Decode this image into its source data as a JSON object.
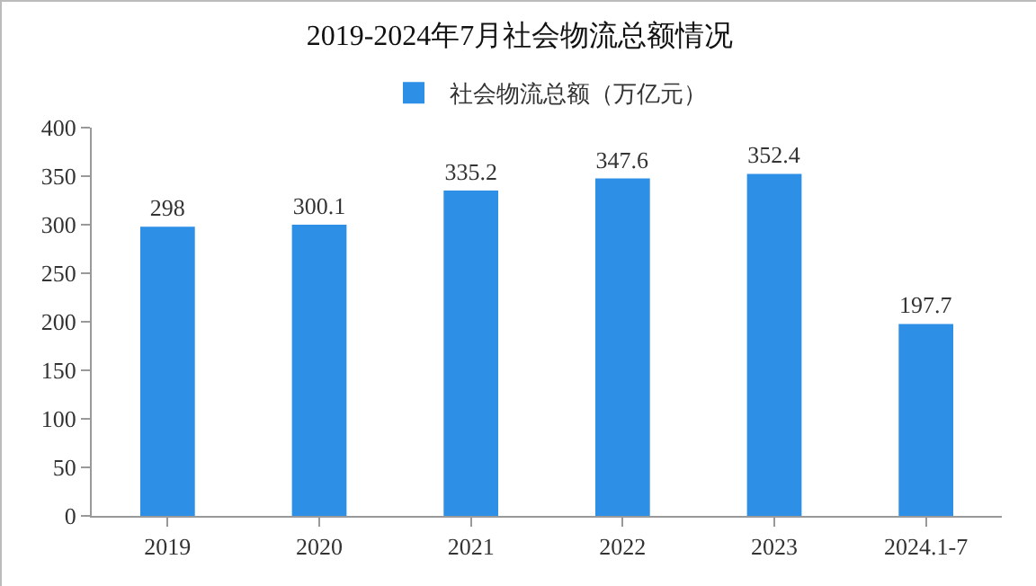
{
  "chart_data": {
    "type": "bar",
    "title": "2019-2024年7月社会物流总额情况",
    "categories": [
      "2019",
      "2020",
      "2021",
      "2022",
      "2023",
      "2024.1-7"
    ],
    "series": [
      {
        "name": "社会物流总额（万亿元）",
        "color": "#2e8fe6",
        "values": [
          298,
          300.1,
          335.2,
          347.6,
          352.4,
          197.7
        ]
      }
    ],
    "ylim": [
      0,
      400
    ],
    "yticks": [
      0,
      50,
      100,
      150,
      200,
      250,
      300,
      350,
      400
    ],
    "grid": false,
    "legend": "top",
    "data_labels": true
  }
}
